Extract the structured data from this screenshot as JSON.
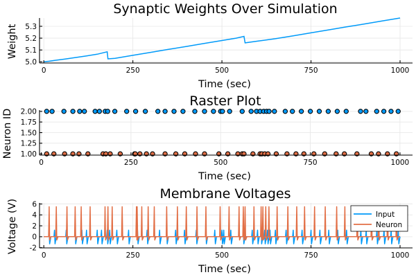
{
  "chart_data": [
    {
      "type": "line",
      "title": "Synaptic Weights Over Simulation",
      "xlabel": "Time (sec)",
      "ylabel": "Weight",
      "xlim": [
        -12,
        1035
      ],
      "ylim": [
        4.99,
        5.37
      ],
      "xticks": [
        0,
        250,
        500,
        750,
        1000
      ],
      "xtick_labels": [
        "0",
        "250",
        "500",
        "750",
        "1000"
      ],
      "yticks": [
        5.0,
        5.1,
        5.2,
        5.3
      ],
      "ytick_labels": [
        "5.0",
        "5.1",
        "5.2",
        "5.3"
      ],
      "grid": true,
      "legend": "none",
      "series": [
        {
          "color": "#009af9",
          "x": [
            0,
            15,
            30,
            60,
            90,
            120,
            150,
            178,
            180,
            200,
            250,
            300,
            350,
            400,
            450,
            500,
            540,
            562,
            565,
            600,
            650,
            700,
            750,
            800,
            850,
            900,
            950,
            1000
          ],
          "y": [
            5.0,
            5.005,
            5.012,
            5.024,
            5.037,
            5.05,
            5.064,
            5.085,
            5.025,
            5.03,
            5.055,
            5.08,
            5.105,
            5.13,
            5.155,
            5.18,
            5.2,
            5.215,
            5.16,
            5.175,
            5.195,
            5.22,
            5.245,
            5.27,
            5.295,
            5.32,
            5.345,
            5.37
          ]
        }
      ]
    },
    {
      "type": "scatter",
      "title": "Raster Plot",
      "xlabel": "Time (sec)",
      "ylabel": "Neuron ID",
      "xlim": [
        -5,
        1035
      ],
      "ylim": [
        0.97,
        2.03
      ],
      "xticks": [
        0,
        250,
        500,
        750,
        1000
      ],
      "xtick_labels": [
        "0",
        "250",
        "500",
        "750",
        "1000"
      ],
      "yticks": [
        1.0,
        1.25,
        1.5,
        1.75,
        2.0
      ],
      "ytick_labels": [
        "1.00",
        "1.25",
        "1.50",
        "1.75",
        "2.00"
      ],
      "grid": true,
      "legend": "none",
      "series": [
        {
          "color": "#009af9",
          "y_value": 2,
          "x": [
            15,
            30,
            63,
            88,
            107,
            120,
            150,
            162,
            178,
            185,
            205,
            238,
            263,
            290,
            325,
            345,
            370,
            395,
            428,
            455,
            480,
            500,
            505,
            525,
            560,
            585,
            600,
            610,
            620,
            628,
            635,
            650,
            680,
            700,
            725,
            750,
            775,
            800,
            825,
            850,
            890,
            905,
            935,
            955,
            975,
            995
          ]
        },
        {
          "color": "#e26f46",
          "y_value": 1,
          "x": [
            15,
            35,
            65,
            88,
            105,
            130,
            172,
            180,
            192,
            220,
            260,
            262,
            275,
            293,
            310,
            345,
            375,
            400,
            430,
            455,
            495,
            520,
            548,
            560,
            565,
            590,
            610,
            615,
            623,
            632,
            655,
            685,
            710,
            732,
            760,
            790,
            822,
            845,
            880,
            920,
            940,
            965,
            990
          ]
        }
      ]
    },
    {
      "type": "line",
      "title": "Membrane Voltages",
      "xlabel": "Time (sec)",
      "ylabel": "Voltage (V)",
      "xlim": [
        -12,
        1035
      ],
      "ylim": [
        -2.05,
        6.2
      ],
      "xticks": [
        0,
        250,
        500,
        750,
        1000
      ],
      "xtick_labels": [
        "0",
        "250",
        "500",
        "750",
        "1000"
      ],
      "yticks": [
        -2,
        0,
        2,
        4,
        6
      ],
      "ytick_labels": [
        "-2",
        "0",
        "2",
        "4",
        "6"
      ],
      "grid": true,
      "legend": "top-right",
      "series": [
        {
          "name": "Input",
          "color": "#009af9",
          "base": 0,
          "spike_high": 1.2,
          "spike_low": -1.3,
          "spike_times": [
            15,
            30,
            63,
            88,
            107,
            120,
            150,
            162,
            178,
            185,
            205,
            238,
            263,
            290,
            325,
            345,
            370,
            395,
            428,
            455,
            480,
            500,
            505,
            525,
            560,
            585,
            600,
            610,
            620,
            628,
            635,
            650,
            680,
            700,
            725,
            750,
            775,
            800,
            825,
            850,
            890,
            905,
            935,
            955,
            975,
            995
          ]
        },
        {
          "name": "Neuron",
          "color": "#e26f46",
          "base": 0,
          "spike_high": 5.5,
          "spike_low": -0.6,
          "spike_times": [
            15,
            35,
            65,
            88,
            105,
            130,
            172,
            180,
            192,
            220,
            260,
            262,
            275,
            293,
            310,
            345,
            375,
            400,
            430,
            455,
            495,
            520,
            548,
            560,
            565,
            590,
            610,
            615,
            623,
            632,
            655,
            685,
            710,
            732,
            760,
            790,
            822,
            845,
            880,
            920,
            940,
            965,
            990
          ]
        }
      ]
    }
  ]
}
